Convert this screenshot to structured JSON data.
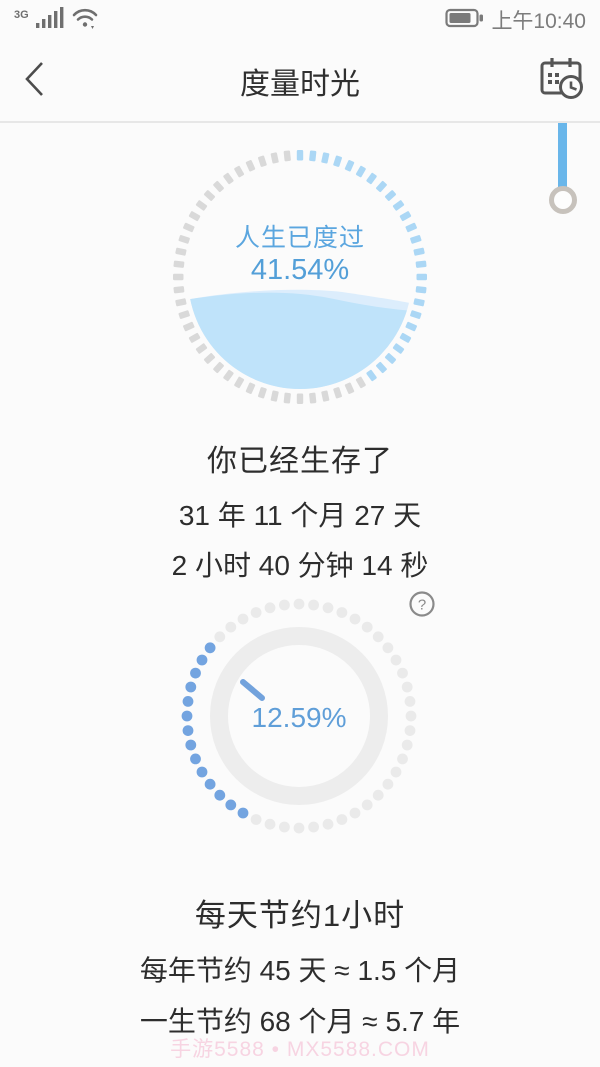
{
  "status_bar": {
    "network": "3G",
    "time": "上午10:40"
  },
  "nav": {
    "title": "度量时光"
  },
  "life_gauge": {
    "label": "人生已度过",
    "percent_text": "41.54%"
  },
  "survived": {
    "heading": "你已经生存了",
    "line1": "31 年 11 个月 27 天",
    "line2": "2 小时 40 分钟 14 秒"
  },
  "saving_gauge": {
    "percent_text": "12.59%",
    "help_glyph": "?"
  },
  "savings": {
    "heading": "每天节约1小时",
    "line1": "每年节约 45 天 ≈ 1.5 个月",
    "line2": "一生节约 68 个月 ≈ 5.7 年"
  },
  "watermark": "手游5588 • MX5588.COM",
  "colors": {
    "accent_blue": "#5ba6df",
    "tick_blue": "#abd7f5",
    "tick_gray": "#d9d9d9",
    "water_main": "#bfe3fa",
    "water_light": "#dcedfc",
    "dot_blue": "#73a4e0",
    "dot_gray": "#eaeaea",
    "ring_gray": "#ededed",
    "hand_blue": "#72a2dc",
    "scrollbar_blue": "#69b6ea"
  },
  "chart_data": [
    {
      "type": "gauge",
      "title": "人生已度过",
      "value": 41.54,
      "max": 100,
      "unit": "%",
      "style": "circular tick ring, progress clockwise from top, water-fill interior",
      "tick_count": 60
    },
    {
      "type": "gauge",
      "title": "每天节约1小时",
      "value": 12.59,
      "max": 100,
      "unit": "%",
      "style": "dotted outer ring with blue arc on left side, solid gray inner ring, short blue hand at upper-left",
      "dot_count": 48,
      "blue_arc_deg": [
        210,
        308
      ]
    }
  ]
}
